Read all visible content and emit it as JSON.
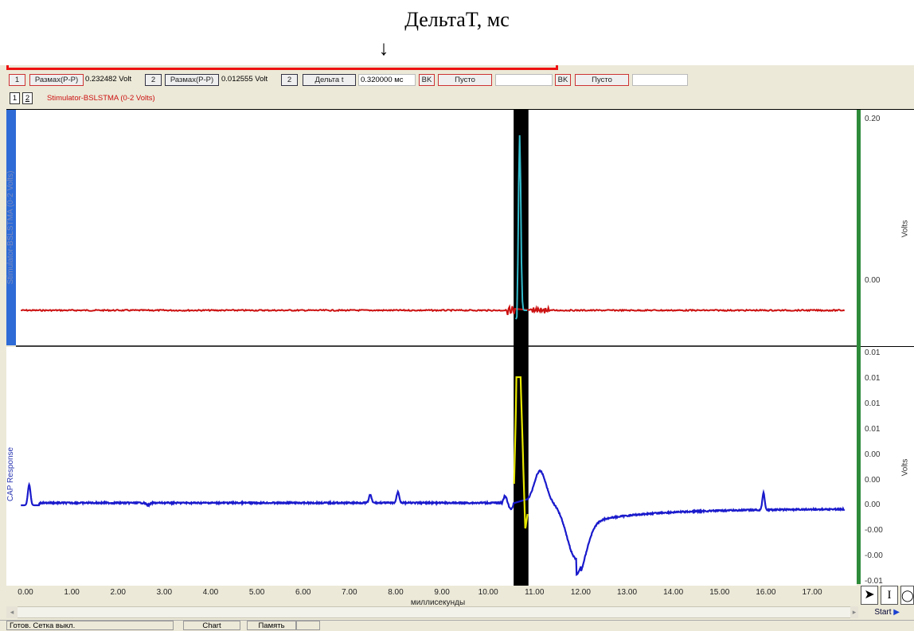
{
  "annotation": {
    "title": "ДельтаT, мс",
    "arrow": "↓"
  },
  "toolbar": {
    "ch1_num": "1",
    "ch1_measure": "Размах(P-P)",
    "ch1_value": "0.232482 Volt",
    "ch2_num": "2",
    "ch2_measure": "Размах(P-P)",
    "ch2_value": "0.012555 Volt",
    "ch3_num": "2",
    "delta_label": "Дельта t",
    "delta_value": "0.320000 мс",
    "bk1": "BK",
    "empty1": "Пусто",
    "empty1_value": "",
    "bk2": "BK",
    "empty2": "Пусто",
    "empty2_value": ""
  },
  "channel_tabs": {
    "tab1": "1",
    "tab2": "2",
    "stimulator_label": "Stimulator-BSLSTMA (0-2 Volts)"
  },
  "top_plot": {
    "channel_label": "Stimulator-BSLSTMA (0-2 Volts)",
    "unit": "Volts",
    "yticks": [
      "0.20",
      "0.00"
    ]
  },
  "bottom_plot": {
    "channel_label": "CAP Response",
    "unit": "Volts",
    "yticks": [
      "0.01",
      "0.01",
      "0.01",
      "0.01",
      "0.00",
      "0.00",
      "0.00",
      "-0.00",
      "-0.00",
      "-0.01"
    ]
  },
  "x_axis": {
    "label": "миллисекунды",
    "ticks": [
      "0.00",
      "1.00",
      "2.00",
      "3.00",
      "4.00",
      "5.00",
      "6.00",
      "7.00",
      "8.00",
      "9.00",
      "10.00",
      "11.00",
      "12.00",
      "13.00",
      "14.00",
      "15.00",
      "16.00",
      "17.00"
    ]
  },
  "selection": {
    "start_ms": 10.55,
    "end_ms": 10.87
  },
  "tools": {
    "start": "Start"
  },
  "status": {
    "text": "Готов. Сетка выкл.",
    "chart": "Chart",
    "memory": "Память"
  },
  "colors": {
    "stim": "#cc1111",
    "stim_highlight": "#33bbcc",
    "cap": "#1a1acc",
    "cap_highlight": "#e8e800",
    "selection": "#000000",
    "left_bar": "#2e6bd6",
    "right_bar": "#2e8b3a"
  }
}
